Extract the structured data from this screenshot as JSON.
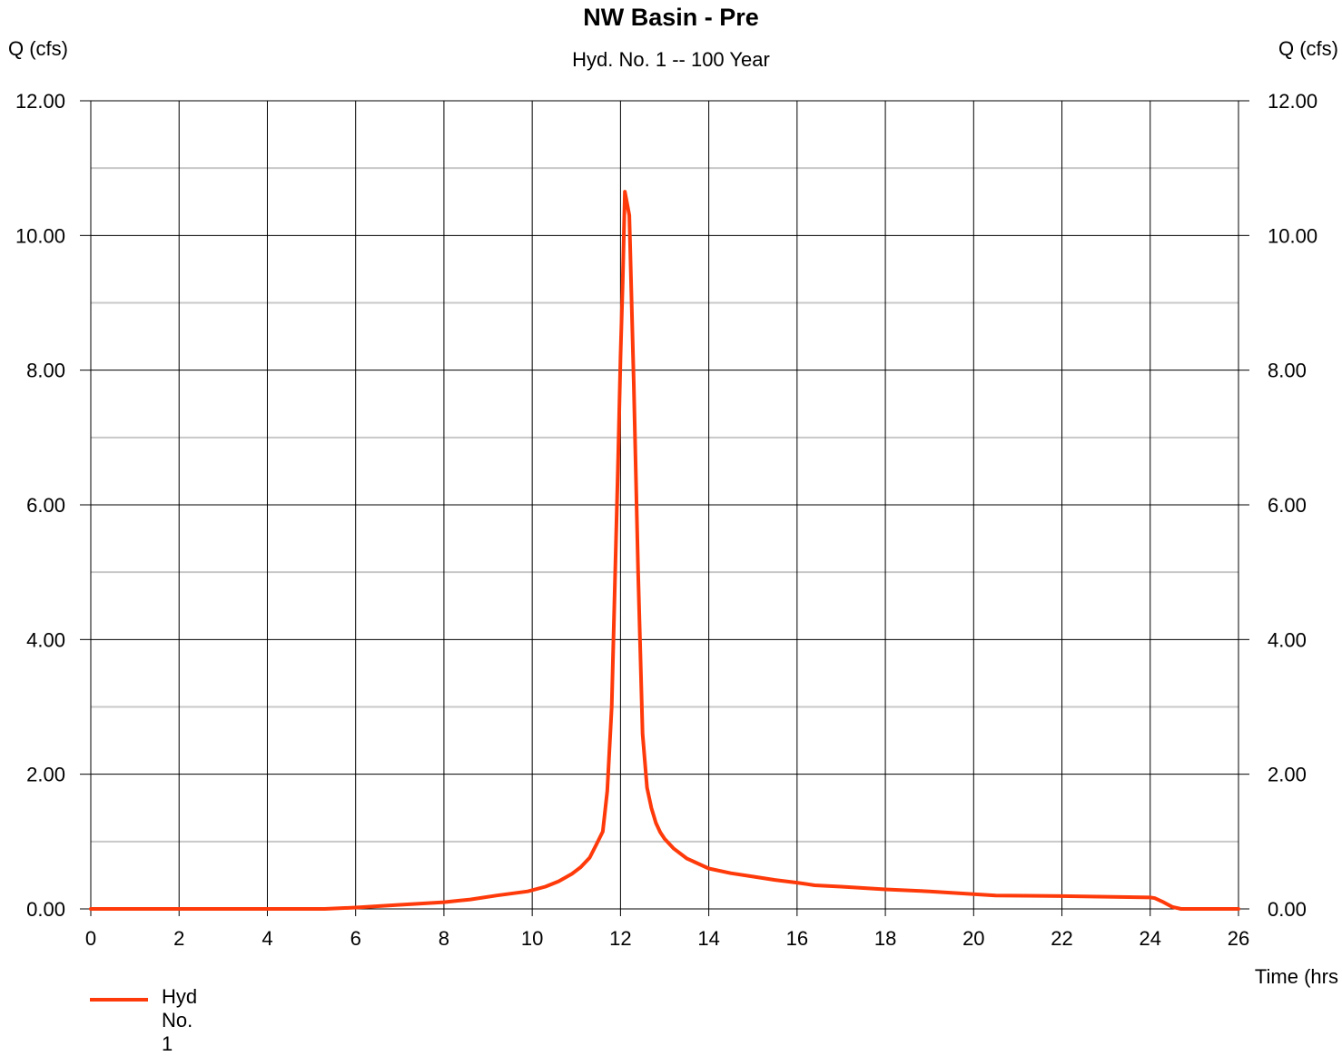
{
  "chart_data": {
    "type": "line",
    "title": "NW Basin - Pre",
    "subtitle": "Hyd. No. 1 -- 100 Year",
    "ylabel_left": "Q (cfs)",
    "ylabel_right": "Q (cfs)",
    "xlabel": "Time (hrs",
    "xlim": [
      0,
      26
    ],
    "ylim": [
      0,
      12
    ],
    "x_ticks": [
      "0",
      "2",
      "4",
      "6",
      "8",
      "10",
      "12",
      "14",
      "16",
      "18",
      "20",
      "22",
      "24",
      "26"
    ],
    "y_ticks": [
      "0.00",
      "2.00",
      "4.00",
      "6.00",
      "8.00",
      "10.00",
      "12.00"
    ],
    "grid": true,
    "legend_position": "bottom-left",
    "colors": {
      "series": "#ff3a0a",
      "major_grid": "#000000",
      "minor_grid": "#c8c8c8"
    },
    "series": [
      {
        "name": "Hyd No. 1",
        "x": [
          0,
          5.3,
          6,
          7,
          8,
          8.6,
          9.2,
          9.9,
          10.3,
          10.6,
          10.9,
          11.1,
          11.3,
          11.45,
          11.6,
          11.7,
          11.8,
          11.9,
          11.95,
          12.0,
          12.05,
          12.1,
          12.2,
          12.3,
          12.4,
          12.5,
          12.6,
          12.7,
          12.8,
          12.9,
          13.0,
          13.2,
          13.5,
          14.0,
          14.5,
          15.0,
          15.5,
          16.0,
          16.4,
          17,
          18,
          19,
          20,
          20.5,
          22,
          23,
          24,
          24.1,
          24.3,
          24.5,
          24.7,
          26
        ],
        "y": [
          0,
          0,
          0.02,
          0.06,
          0.1,
          0.14,
          0.2,
          0.26,
          0.33,
          0.41,
          0.52,
          0.62,
          0.76,
          0.95,
          1.15,
          1.75,
          3.0,
          5.5,
          6.8,
          8.2,
          9.3,
          10.65,
          10.3,
          7.8,
          5.0,
          2.6,
          1.8,
          1.5,
          1.28,
          1.14,
          1.04,
          0.9,
          0.75,
          0.6,
          0.53,
          0.48,
          0.43,
          0.39,
          0.35,
          0.33,
          0.29,
          0.26,
          0.22,
          0.2,
          0.19,
          0.18,
          0.17,
          0.16,
          0.1,
          0.03,
          0.0,
          0.0
        ]
      }
    ]
  }
}
